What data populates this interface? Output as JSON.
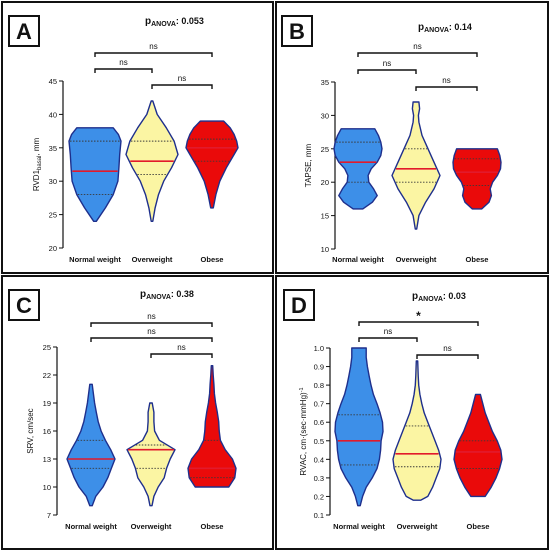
{
  "colors": {
    "outline": "#1e2f8c",
    "median": "#e21a2c",
    "quartile": "#3a3a3a",
    "normal_fill": "#3d8fe8",
    "overweight_fill": "#fbf5a3",
    "obese_fill": "#ea0a0a",
    "panel_border": "#111111"
  },
  "chart_data": [
    {
      "type": "violin",
      "panel_label": "A",
      "anova_label": "p",
      "anova_sub": "ANOVA",
      "anova_value": ": 0.053",
      "ylabel": "RVD1",
      "ylabel_sub": "basal",
      "ylabel_suffix": ", mm",
      "ylim": [
        20,
        45
      ],
      "yticks": [
        "20",
        "25",
        "30",
        "35",
        "40",
        "45"
      ],
      "categories": [
        "Normal weight",
        "Overweight",
        "Obese"
      ],
      "series": [
        {
          "min": 24,
          "max": 38,
          "median": 31.5,
          "q1": 28,
          "q3": 36,
          "profile": [
            [
              24,
              0.05
            ],
            [
              26,
              0.4
            ],
            [
              28,
              0.7
            ],
            [
              30,
              0.88
            ],
            [
              32,
              0.92
            ],
            [
              34,
              0.95
            ],
            [
              36,
              1.0
            ],
            [
              37,
              0.9
            ],
            [
              38,
              0.7
            ]
          ]
        },
        {
          "min": 24,
          "max": 42,
          "median": 33,
          "q1": 31,
          "q3": 36,
          "profile": [
            [
              24,
              0.03
            ],
            [
              26,
              0.12
            ],
            [
              28,
              0.25
            ],
            [
              30,
              0.45
            ],
            [
              32,
              0.75
            ],
            [
              34,
              1.0
            ],
            [
              36,
              0.85
            ],
            [
              38,
              0.55
            ],
            [
              40,
              0.2
            ],
            [
              42,
              0.03
            ]
          ]
        },
        {
          "min": 26,
          "max": 39,
          "median": 35,
          "q1": 33,
          "q3": 36.3,
          "profile": [
            [
              26,
              0.05
            ],
            [
              28,
              0.15
            ],
            [
              30,
              0.3
            ],
            [
              32,
              0.55
            ],
            [
              34,
              0.85
            ],
            [
              35,
              1.0
            ],
            [
              36,
              0.95
            ],
            [
              37,
              0.85
            ],
            [
              38,
              0.7
            ],
            [
              39,
              0.45
            ]
          ]
        }
      ],
      "brackets": [
        {
          "from": 0,
          "to": 2,
          "label": "ns"
        },
        {
          "from": 0,
          "to": 1,
          "label": "ns"
        },
        {
          "from": 1,
          "to": 2,
          "label": "ns"
        }
      ]
    },
    {
      "type": "violin",
      "panel_label": "B",
      "anova_label": "p",
      "anova_sub": "ANOVA",
      "anova_value": ": 0.14",
      "ylabel": "TAPSE, mm",
      "ylabel_sub": "",
      "ylabel_suffix": "",
      "ylim": [
        10,
        35
      ],
      "yticks": [
        "10",
        "15",
        "20",
        "25",
        "30",
        "35"
      ],
      "categories": [
        "Normal weight",
        "Overweight",
        "Obese"
      ],
      "series": [
        {
          "min": 16,
          "max": 28,
          "median": 23,
          "q1": 20,
          "q3": 26,
          "profile": [
            [
              16,
              0.2
            ],
            [
              17,
              0.6
            ],
            [
              18,
              0.8
            ],
            [
              19,
              0.65
            ],
            [
              20,
              0.45
            ],
            [
              21,
              0.42
            ],
            [
              22,
              0.55
            ],
            [
              23,
              0.8
            ],
            [
              24,
              0.95
            ],
            [
              25,
              1.0
            ],
            [
              26,
              0.95
            ],
            [
              27,
              0.85
            ],
            [
              28,
              0.7
            ]
          ]
        },
        {
          "min": 13,
          "max": 32,
          "median": 22,
          "q1": 20,
          "q3": 25,
          "profile": [
            [
              13,
              0.03
            ],
            [
              15,
              0.12
            ],
            [
              17,
              0.4
            ],
            [
              19,
              0.75
            ],
            [
              21,
              1.0
            ],
            [
              23,
              0.75
            ],
            [
              25,
              0.5
            ],
            [
              27,
              0.25
            ],
            [
              29,
              0.12
            ],
            [
              30,
              0.1
            ],
            [
              31,
              0.15
            ],
            [
              32,
              0.12
            ]
          ]
        },
        {
          "min": 16,
          "max": 25,
          "median": 21.5,
          "q1": 19.5,
          "q3": 23.5,
          "profile": [
            [
              16,
              0.2
            ],
            [
              17,
              0.5
            ],
            [
              18,
              0.6
            ],
            [
              19,
              0.55
            ],
            [
              20,
              0.65
            ],
            [
              21,
              0.85
            ],
            [
              22,
              0.98
            ],
            [
              23,
              1.0
            ],
            [
              24,
              0.95
            ],
            [
              25,
              0.85
            ]
          ]
        }
      ],
      "brackets": [
        {
          "from": 0,
          "to": 2,
          "label": "ns"
        },
        {
          "from": 0,
          "to": 1,
          "label": "ns"
        },
        {
          "from": 1,
          "to": 2,
          "label": "ns"
        }
      ]
    },
    {
      "type": "violin",
      "panel_label": "C",
      "anova_label": "p",
      "anova_sub": "ANOVA",
      "anova_value": ": 0.38",
      "ylabel": "SRV, cm/sec",
      "ylabel_sub": "",
      "ylabel_suffix": "",
      "ylim": [
        7,
        25
      ],
      "yticks": [
        "7",
        "10",
        "13",
        "16",
        "19",
        "22",
        "25"
      ],
      "categories": [
        "Normal weight",
        "Overweight",
        "Obese"
      ],
      "series": [
        {
          "min": 8,
          "max": 21,
          "median": 13,
          "q1": 12,
          "q3": 15,
          "profile": [
            [
              8,
              0.05
            ],
            [
              9,
              0.2
            ],
            [
              10,
              0.5
            ],
            [
              11,
              0.7
            ],
            [
              12,
              0.85
            ],
            [
              13,
              1.0
            ],
            [
              14,
              0.82
            ],
            [
              15,
              0.6
            ],
            [
              16,
              0.42
            ],
            [
              17,
              0.3
            ],
            [
              18,
              0.22
            ],
            [
              19,
              0.15
            ],
            [
              20,
              0.1
            ],
            [
              21,
              0.05
            ]
          ]
        },
        {
          "min": 8,
          "max": 19,
          "median": 14,
          "q1": 12,
          "q3": 14.5,
          "profile": [
            [
              8,
              0.04
            ],
            [
              9,
              0.12
            ],
            [
              10,
              0.3
            ],
            [
              11,
              0.55
            ],
            [
              12,
              0.65
            ],
            [
              13,
              0.8
            ],
            [
              14,
              1.0
            ],
            [
              15,
              0.35
            ],
            [
              16,
              0.15
            ],
            [
              17,
              0.12
            ],
            [
              18,
              0.12
            ],
            [
              19,
              0.05
            ]
          ]
        },
        {
          "min": 10,
          "max": 23,
          "median": 12,
          "q1": 11,
          "q3": 15,
          "profile": [
            [
              10,
              0.7
            ],
            [
              11,
              0.95
            ],
            [
              12,
              1.0
            ],
            [
              13,
              0.85
            ],
            [
              14,
              0.55
            ],
            [
              15,
              0.35
            ],
            [
              16,
              0.3
            ],
            [
              17,
              0.28
            ],
            [
              18,
              0.22
            ],
            [
              19,
              0.15
            ],
            [
              20,
              0.1
            ],
            [
              21,
              0.08
            ],
            [
              22,
              0.05
            ],
            [
              23,
              0.03
            ]
          ]
        }
      ],
      "brackets": [
        {
          "from": 0,
          "to": 2,
          "label": "ns"
        },
        {
          "from": 0,
          "to": 2,
          "label": "ns"
        },
        {
          "from": 1,
          "to": 2,
          "label": "ns"
        }
      ]
    },
    {
      "type": "violin",
      "panel_label": "D",
      "anova_label": "p",
      "anova_sub": "ANOVA",
      "anova_value": ": 0.03",
      "ylabel": "RVAC, cm·(sec·mmHg)",
      "ylabel_sub": "",
      "ylabel_suffix": "",
      "ylabel_sup": "-1",
      "ylim": [
        0.1,
        1.0
      ],
      "yticks": [
        "0.1",
        "0.2",
        "0.3",
        "0.4",
        "0.5",
        "0.6",
        "0.7",
        "0.8",
        "0.9",
        "1.0"
      ],
      "categories": [
        "Normal weight",
        "Overweight",
        "Obese"
      ],
      "series": [
        {
          "min": 0.15,
          "max": 1.0,
          "median": 0.5,
          "q1": 0.37,
          "q3": 0.64,
          "profile": [
            [
              0.15,
              0.05
            ],
            [
              0.2,
              0.15
            ],
            [
              0.25,
              0.3
            ],
            [
              0.3,
              0.55
            ],
            [
              0.35,
              0.75
            ],
            [
              0.4,
              0.85
            ],
            [
              0.45,
              0.9
            ],
            [
              0.5,
              0.92
            ],
            [
              0.55,
              1.0
            ],
            [
              0.6,
              0.98
            ],
            [
              0.65,
              0.88
            ],
            [
              0.7,
              0.75
            ],
            [
              0.75,
              0.6
            ],
            [
              0.8,
              0.5
            ],
            [
              0.85,
              0.42
            ],
            [
              0.9,
              0.35
            ],
            [
              0.95,
              0.3
            ],
            [
              1.0,
              0.3
            ]
          ]
        },
        {
          "min": 0.18,
          "max": 0.93,
          "median": 0.43,
          "q1": 0.36,
          "q3": 0.58,
          "profile": [
            [
              0.18,
              0.15
            ],
            [
              0.2,
              0.45
            ],
            [
              0.25,
              0.65
            ],
            [
              0.3,
              0.8
            ],
            [
              0.35,
              0.95
            ],
            [
              0.4,
              1.0
            ],
            [
              0.45,
              0.9
            ],
            [
              0.5,
              0.75
            ],
            [
              0.55,
              0.6
            ],
            [
              0.6,
              0.45
            ],
            [
              0.65,
              0.3
            ],
            [
              0.7,
              0.2
            ],
            [
              0.75,
              0.12
            ],
            [
              0.8,
              0.07
            ],
            [
              0.85,
              0.05
            ],
            [
              0.93,
              0.03
            ]
          ]
        },
        {
          "min": 0.2,
          "max": 0.75,
          "median": 0.44,
          "q1": 0.35,
          "q3": 0.5,
          "profile": [
            [
              0.2,
              0.3
            ],
            [
              0.25,
              0.55
            ],
            [
              0.3,
              0.75
            ],
            [
              0.35,
              0.9
            ],
            [
              0.4,
              1.0
            ],
            [
              0.45,
              0.95
            ],
            [
              0.5,
              0.8
            ],
            [
              0.55,
              0.6
            ],
            [
              0.6,
              0.45
            ],
            [
              0.65,
              0.3
            ],
            [
              0.7,
              0.2
            ],
            [
              0.75,
              0.1
            ]
          ]
        }
      ],
      "brackets": [
        {
          "from": 0,
          "to": 2,
          "label": "*"
        },
        {
          "from": 0,
          "to": 1,
          "label": "ns"
        },
        {
          "from": 1,
          "to": 2,
          "label": "ns"
        }
      ]
    }
  ]
}
